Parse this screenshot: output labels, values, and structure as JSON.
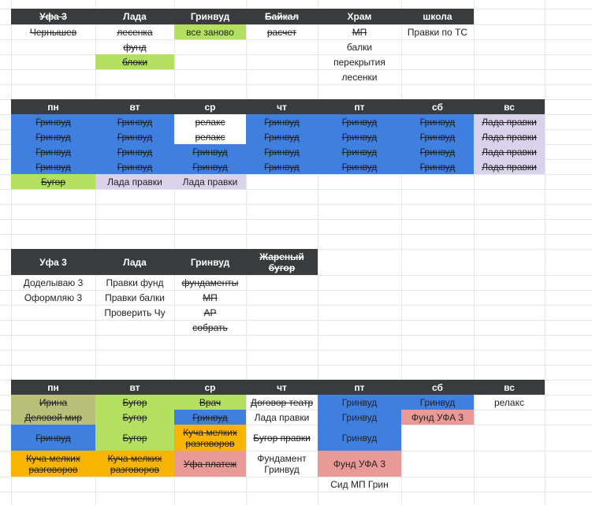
{
  "table1": {
    "headers": [
      "Уфа 3",
      "Лада",
      "Гринвуд",
      "Байкал",
      "Храм",
      "школа"
    ],
    "header_struck": [
      true,
      false,
      false,
      true,
      false,
      false
    ],
    "cells": [
      [
        "Чернышев",
        "лесенка",
        "все заново",
        "расчет",
        "МП",
        "Правки по ТС"
      ],
      [
        "",
        "фунд",
        "",
        "",
        "балки",
        ""
      ],
      [
        "",
        "блоки",
        "",
        "",
        "перекрытия",
        ""
      ],
      [
        "",
        "",
        "",
        "",
        "лесенки",
        ""
      ]
    ]
  },
  "week1": {
    "headers": [
      "пн",
      "вт",
      "ср",
      "чт",
      "пт",
      "сб",
      "вс"
    ],
    "rows": [
      [
        "Гринвуд",
        "Гринвуд",
        "релакс",
        "Гринвуд",
        "Гринвуд",
        "Гринвуд",
        "Лада правки"
      ],
      [
        "Гринвуд",
        "Гринвуд",
        "релакс",
        "Гринвуд",
        "Гринвуд",
        "Гринвуд",
        "Лада правки"
      ],
      [
        "Гринвуд",
        "Гринвуд",
        "Гринвуд",
        "Гринвуд",
        "Гринвуд",
        "Гринвуд",
        "Лада правки"
      ],
      [
        "Гринвуд",
        "Гринвуд",
        "Гринвуд",
        "Гринвуд",
        "Гринвуд",
        "Гринвуд",
        "Лада правки"
      ],
      [
        "Бугор",
        "Лада правки",
        "Лада правки",
        "",
        "",
        "",
        ""
      ]
    ]
  },
  "table2": {
    "headers": [
      "Уфа 3",
      "Лада",
      "Гринвуд",
      "Жареный бугор"
    ],
    "header_struck": [
      false,
      false,
      false,
      true
    ],
    "cells": [
      [
        "Доделываю 3",
        "Правки фунд",
        "фундаменты",
        ""
      ],
      [
        "Оформляю 3",
        "Правки балки",
        "МП",
        ""
      ],
      [
        "",
        "Проверить Чу",
        "АР",
        ""
      ],
      [
        "",
        "",
        "собрать",
        ""
      ]
    ]
  },
  "week2": {
    "headers": [
      "пн",
      "вт",
      "ср",
      "чт",
      "пт",
      "сб",
      "вс"
    ],
    "cells": {
      "mon": [
        "Ирина",
        "Деловой мир",
        "Гринвуд",
        "Куча мелких разговоров"
      ],
      "tue": [
        "Бугор",
        "Бугор",
        "Бугор",
        "Куча мелких разговоров"
      ],
      "wed": [
        "Врач",
        "Гринвуд",
        "Куча мелких разговоров",
        "Уфа платеж"
      ],
      "thu": [
        "Договор театр",
        "Лада правки",
        "Бугор правки",
        "Фундамент Гринвуд"
      ],
      "fri": [
        "Гринвуд",
        "Гринвуд",
        "Гринвуд",
        "Фунд УФА 3",
        "Сид МП Грин"
      ],
      "sat": [
        "Гринвуд",
        "Фунд УФА 3"
      ],
      "sun": [
        "релакс"
      ]
    }
  },
  "colors": {
    "header": "#3a3b3c",
    "blue": "#3f7fe0",
    "green": "#b4e060",
    "lavender": "#d8d2ea",
    "orange": "#f7b400",
    "pink": "#ea9a96",
    "olive": "#b7bf78",
    "gridline": "#e6e6e6"
  }
}
